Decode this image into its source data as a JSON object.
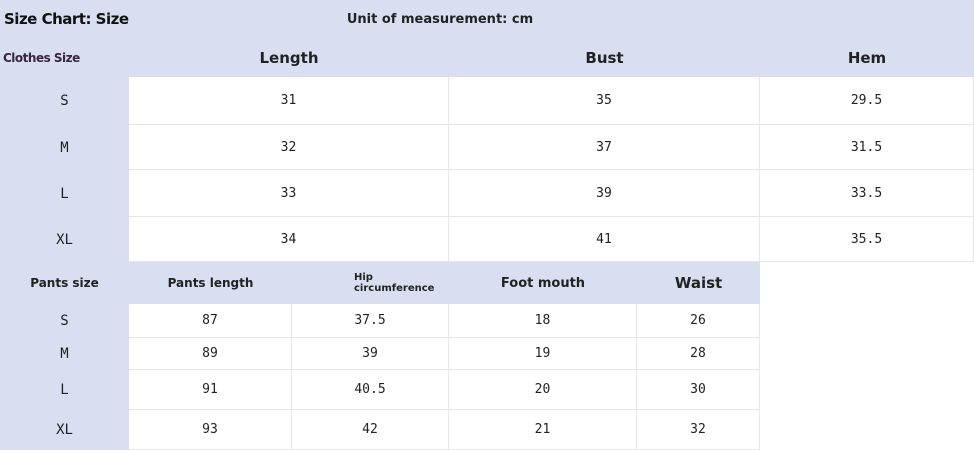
{
  "title": "Size Chart: Size",
  "unit": "Unit of measurement: cm",
  "clothes": {
    "size_label": "Clothes Size",
    "headers": [
      "Length",
      "Bust",
      "Hem"
    ],
    "rows": [
      {
        "size": "S",
        "values": [
          "31",
          "35",
          "29.5"
        ]
      },
      {
        "size": "M",
        "values": [
          "32",
          "37",
          "31.5"
        ]
      },
      {
        "size": "L",
        "values": [
          "33",
          "39",
          "33.5"
        ]
      },
      {
        "size": "XL",
        "values": [
          "34",
          "41",
          "35.5"
        ]
      }
    ]
  },
  "pants": {
    "size_label": "Pants size",
    "headers": [
      "Pants length",
      "Hip circumference",
      "Foot mouth",
      "Waist"
    ],
    "rows": [
      {
        "size": "S",
        "values": [
          "87",
          "37.5",
          "18",
          "26"
        ]
      },
      {
        "size": "M",
        "values": [
          "89",
          "39",
          "19",
          "28"
        ]
      },
      {
        "size": "L",
        "values": [
          "91",
          "40.5",
          "20",
          "30"
        ]
      },
      {
        "size": "XL",
        "values": [
          "93",
          "42",
          "21",
          "32"
        ]
      }
    ]
  },
  "colors": {
    "header_bg": "#d9dff1",
    "bust_highlight": "#e6e6b8"
  }
}
